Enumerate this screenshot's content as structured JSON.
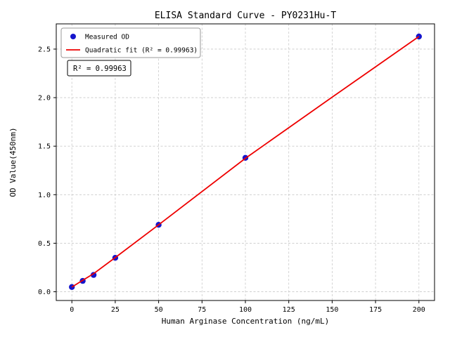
{
  "chart_data": {
    "type": "scatter",
    "title": "ELISA Standard Curve - PY0231Hu-T",
    "xlabel": "Human Arginase Concentration (ng/mL)",
    "ylabel": "OD Value(450nm)",
    "xlim": [
      -9,
      209
    ],
    "ylim": [
      -0.09,
      2.76
    ],
    "xticks": [
      0,
      25,
      50,
      75,
      100,
      125,
      150,
      175,
      200
    ],
    "xtick_labels": [
      "0",
      "25",
      "50",
      "75",
      "100",
      "125",
      "150",
      "175",
      "200"
    ],
    "yticks": [
      0,
      0.5,
      1.0,
      1.5,
      2.0,
      2.5
    ],
    "ytick_labels": [
      "0.0",
      "0.5",
      "1.0",
      "1.5",
      "2.0",
      "2.5"
    ],
    "grid": true,
    "annotation": "R² = 0.99963",
    "r_squared": 0.99963,
    "legend": {
      "position": "upper left",
      "entries": [
        {
          "label": "Measured OD",
          "marker": "dot",
          "color": "#1515cc"
        },
        {
          "label": "Quadratic fit (R² = 0.99963)",
          "marker": "line",
          "color": "#ee0000"
        }
      ]
    },
    "series": [
      {
        "name": "Measured OD",
        "type": "scatter",
        "color": "#1515cc",
        "points": [
          [
            0,
            0.049
          ],
          [
            6.25,
            0.112
          ],
          [
            12.5,
            0.173
          ],
          [
            25,
            0.35
          ],
          [
            50,
            0.69
          ],
          [
            100,
            1.38
          ],
          [
            200,
            2.63
          ]
        ]
      },
      {
        "name": "Quadratic fit",
        "type": "line",
        "color": "#ee0000",
        "points": [
          [
            0,
            0.048
          ],
          [
            6.25,
            0.118
          ],
          [
            12.5,
            0.186
          ],
          [
            25,
            0.352
          ],
          [
            50,
            0.69
          ],
          [
            100,
            1.375
          ],
          [
            150,
            2.005
          ],
          [
            200,
            2.63
          ]
        ]
      }
    ]
  }
}
